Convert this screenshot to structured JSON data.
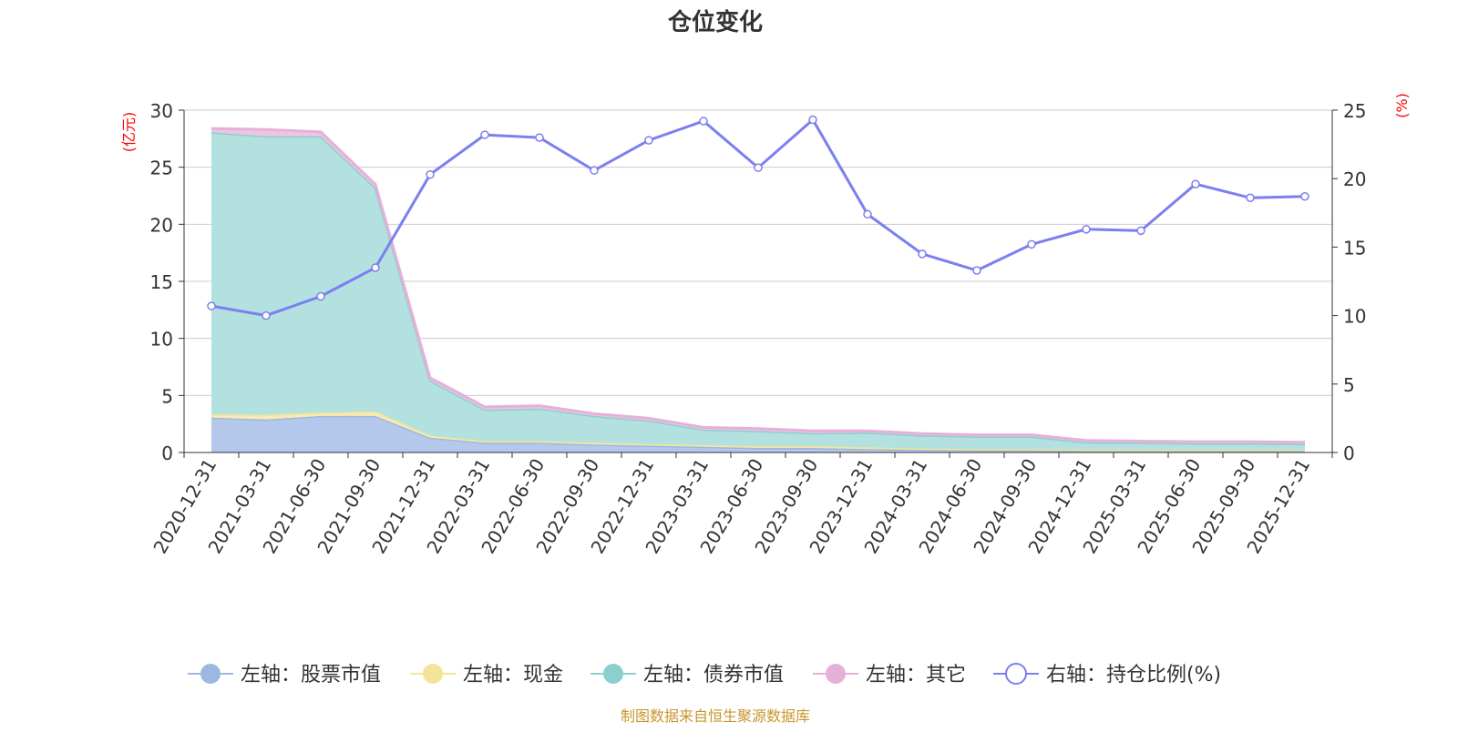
{
  "chart_data": {
    "type": "area",
    "title": "仓位变化",
    "left_axis_unit": "(亿元)",
    "right_axis_unit": "(%)",
    "source_note": "制图数据来自恒生聚源数据库",
    "left_ylim": [
      0,
      30
    ],
    "left_ticks": [
      0,
      5,
      10,
      15,
      20,
      25,
      30
    ],
    "right_ylim": [
      0,
      25
    ],
    "right_ticks": [
      0,
      5,
      10,
      15,
      20,
      25
    ],
    "categories": [
      "2020-12-31",
      "2021-03-31",
      "2021-06-30",
      "2021-09-30",
      "2021-12-31",
      "2022-03-31",
      "2022-06-30",
      "2022-09-30",
      "2022-12-31",
      "2023-03-31",
      "2023-06-30",
      "2023-09-30",
      "2023-12-31",
      "2024-03-31",
      "2024-06-30",
      "2024-09-30",
      "2024-12-31",
      "2025-03-31",
      "2025-06-30",
      "2025-09-30",
      "2025-12-31"
    ],
    "stacked_series": [
      {
        "name": "左轴：股票市值",
        "axis": "left",
        "color": "#9db8e0",
        "fill": "#b4c8ec",
        "values": [
          3.05,
          2.9,
          3.2,
          3.2,
          1.3,
          0.85,
          0.85,
          0.7,
          0.6,
          0.5,
          0.4,
          0.4,
          0.3,
          0.25,
          0.2,
          0.2,
          0.15,
          0.15,
          0.15,
          0.15,
          0.15
        ]
      },
      {
        "name": "左轴：现金",
        "axis": "left",
        "color": "#f3e49a",
        "fill": "#f7ebb3",
        "values": [
          0.3,
          0.4,
          0.3,
          0.4,
          0.2,
          0.15,
          0.15,
          0.15,
          0.15,
          0.15,
          0.15,
          0.15,
          0.15,
          0.1,
          0.1,
          0.1,
          0.1,
          0.1,
          0.1,
          0.1,
          0.1
        ]
      },
      {
        "name": "左轴：债券市值",
        "axis": "left",
        "color": "#8ccfcf",
        "fill": "#b3e1e0",
        "values": [
          24.7,
          24.4,
          24.2,
          19.6,
          4.8,
          2.75,
          2.85,
          2.35,
          2.05,
          1.35,
          1.35,
          1.15,
          1.3,
          1.15,
          1.1,
          1.1,
          0.65,
          0.6,
          0.55,
          0.55,
          0.5
        ]
      },
      {
        "name": "左轴：其它",
        "axis": "left",
        "color": "#e6b0d8",
        "fill": "#edc5e3",
        "values": [
          0.35,
          0.6,
          0.4,
          0.3,
          0.25,
          0.25,
          0.25,
          0.2,
          0.2,
          0.2,
          0.2,
          0.2,
          0.15,
          0.15,
          0.15,
          0.15,
          0.15,
          0.15,
          0.15,
          0.15,
          0.15
        ]
      }
    ],
    "line_series": {
      "name": "右轴：持仓比例(%)",
      "axis": "right",
      "color": "#7b7ff0",
      "values": [
        10.7,
        10.0,
        11.4,
        13.5,
        20.3,
        23.2,
        23.0,
        20.6,
        22.8,
        24.2,
        20.8,
        24.3,
        17.4,
        14.5,
        13.3,
        15.2,
        16.3,
        16.2,
        19.6,
        18.6,
        18.7
      ]
    },
    "legend_placement": "bottom-center",
    "grid": true
  }
}
